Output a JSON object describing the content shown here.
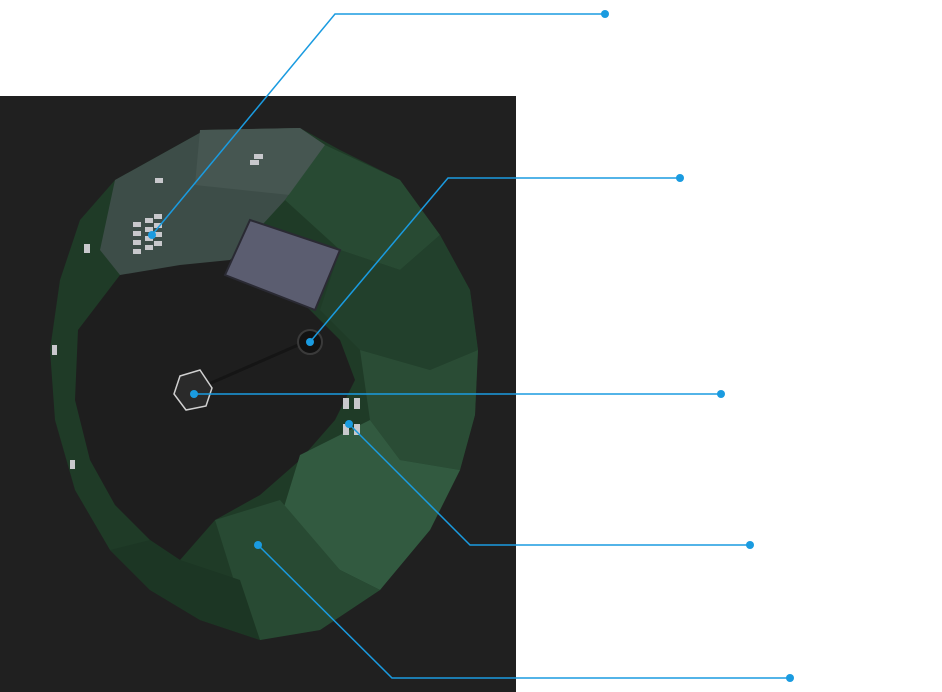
{
  "figure": {
    "background_color": "#ffffff",
    "panel_color": "#202020",
    "leader_color": "#1a9be0",
    "ring_colors": {
      "segment_dark": "#1f3b27",
      "segment_mid": "#284a33",
      "segment_light": "#325a40",
      "lit_panel": "#3d4d48",
      "chip": "#5b5d70",
      "chip_highlight": "#c8c8cc"
    }
  },
  "callouts": [
    {
      "id": "module-grid",
      "label": ""
    },
    {
      "id": "side-port",
      "label": ""
    },
    {
      "id": "center-hub",
      "label": ""
    },
    {
      "id": "small-module",
      "label": ""
    },
    {
      "id": "lower-segment",
      "label": ""
    }
  ],
  "icons": {
    "center": "hex-hub-icon",
    "port": "round-port-icon"
  }
}
